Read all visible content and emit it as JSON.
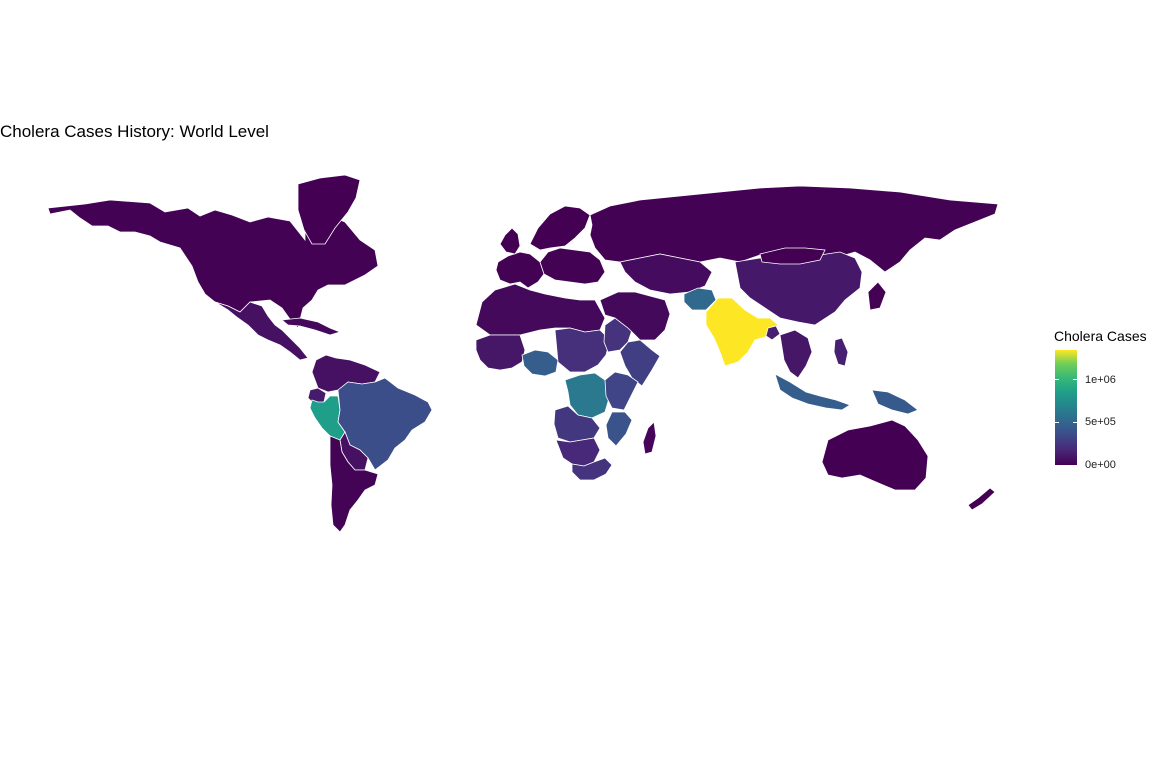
{
  "chart_data": {
    "type": "choropleth",
    "title": "Cholera Cases History: World Level",
    "legend": {
      "title": "Cholera Cases",
      "placement": "right",
      "scale": "viridis",
      "range": [
        0,
        1350000
      ],
      "ticks": [
        {
          "value": 0,
          "label": "0e+00"
        },
        {
          "value": 500000,
          "label": "5e+05"
        },
        {
          "value": 1000000,
          "label": "1e+06"
        }
      ]
    },
    "regions": [
      {
        "name": "north-america",
        "value": 5000
      },
      {
        "name": "greenland",
        "value": 0
      },
      {
        "name": "mexico-central-america",
        "value": 60000
      },
      {
        "name": "cuba-caribbean",
        "value": 30000
      },
      {
        "name": "colombia-venezuela",
        "value": 60000
      },
      {
        "name": "ecuador",
        "value": 100000
      },
      {
        "name": "peru",
        "value": 750000
      },
      {
        "name": "brazil",
        "value": 320000
      },
      {
        "name": "bolivia-paraguay",
        "value": 60000
      },
      {
        "name": "chile-argentina",
        "value": 10000
      },
      {
        "name": "western-europe",
        "value": 2000
      },
      {
        "name": "eastern-europe",
        "value": 2000
      },
      {
        "name": "scandinavia",
        "value": 1000
      },
      {
        "name": "uk-ireland",
        "value": 500
      },
      {
        "name": "russia",
        "value": 5000
      },
      {
        "name": "north-africa",
        "value": 30000
      },
      {
        "name": "west-africa",
        "value": 80000
      },
      {
        "name": "nigeria",
        "value": 400000
      },
      {
        "name": "central-africa",
        "value": 180000
      },
      {
        "name": "dr-congo",
        "value": 550000
      },
      {
        "name": "east-africa",
        "value": 200000
      },
      {
        "name": "somalia-ethiopia",
        "value": 250000
      },
      {
        "name": "tanzania-kenya",
        "value": 280000
      },
      {
        "name": "mozambique",
        "value": 350000
      },
      {
        "name": "angola-zambia",
        "value": 220000
      },
      {
        "name": "southern-africa",
        "value": 150000
      },
      {
        "name": "south-africa",
        "value": 200000
      },
      {
        "name": "madagascar",
        "value": 20000
      },
      {
        "name": "middle-east",
        "value": 30000
      },
      {
        "name": "central-asia",
        "value": 40000
      },
      {
        "name": "afghanistan",
        "value": 450000
      },
      {
        "name": "india",
        "value": 1350000
      },
      {
        "name": "bangladesh",
        "value": 120000
      },
      {
        "name": "china",
        "value": 90000
      },
      {
        "name": "mongolia",
        "value": 0
      },
      {
        "name": "japan",
        "value": 5000
      },
      {
        "name": "southeast-asia",
        "value": 80000
      },
      {
        "name": "indonesia",
        "value": 400000
      },
      {
        "name": "philippines",
        "value": 120000
      },
      {
        "name": "papua-new-guinea",
        "value": 380000
      },
      {
        "name": "australia",
        "value": 0
      },
      {
        "name": "new-zealand",
        "value": 0
      }
    ]
  }
}
